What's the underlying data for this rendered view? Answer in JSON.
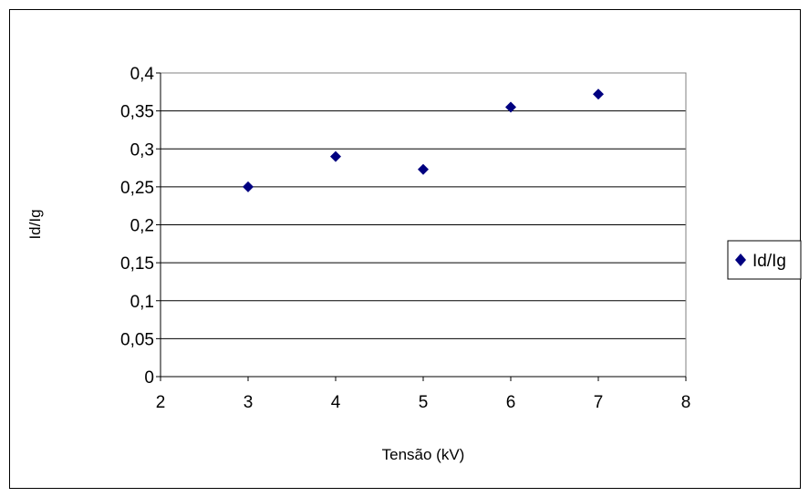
{
  "chart_data": {
    "type": "scatter",
    "title": "",
    "xlabel": "Tensão (kV)",
    "ylabel": "Id/Ig",
    "xlim": [
      2,
      8
    ],
    "ylim": [
      0,
      0.4
    ],
    "x_ticks": [
      2,
      3,
      4,
      5,
      6,
      7,
      8
    ],
    "x_tick_labels": [
      "2",
      "3",
      "4",
      "5",
      "6",
      "7",
      "8"
    ],
    "y_ticks": [
      0,
      0.05,
      0.1,
      0.15,
      0.2,
      0.25,
      0.3,
      0.35,
      0.4
    ],
    "y_tick_labels": [
      "0",
      "0,05",
      "0,1",
      "0,15",
      "0,2",
      "0,25",
      "0,3",
      "0,35",
      "0,4"
    ],
    "grid": "horizontal",
    "legend_position": "right",
    "series": [
      {
        "name": "Id/Ig",
        "marker": "diamond",
        "color": "#000080",
        "points": [
          {
            "x": 3,
            "y": 0.25
          },
          {
            "x": 4,
            "y": 0.29
          },
          {
            "x": 5,
            "y": 0.273
          },
          {
            "x": 6,
            "y": 0.355
          },
          {
            "x": 7,
            "y": 0.372
          }
        ]
      }
    ]
  }
}
